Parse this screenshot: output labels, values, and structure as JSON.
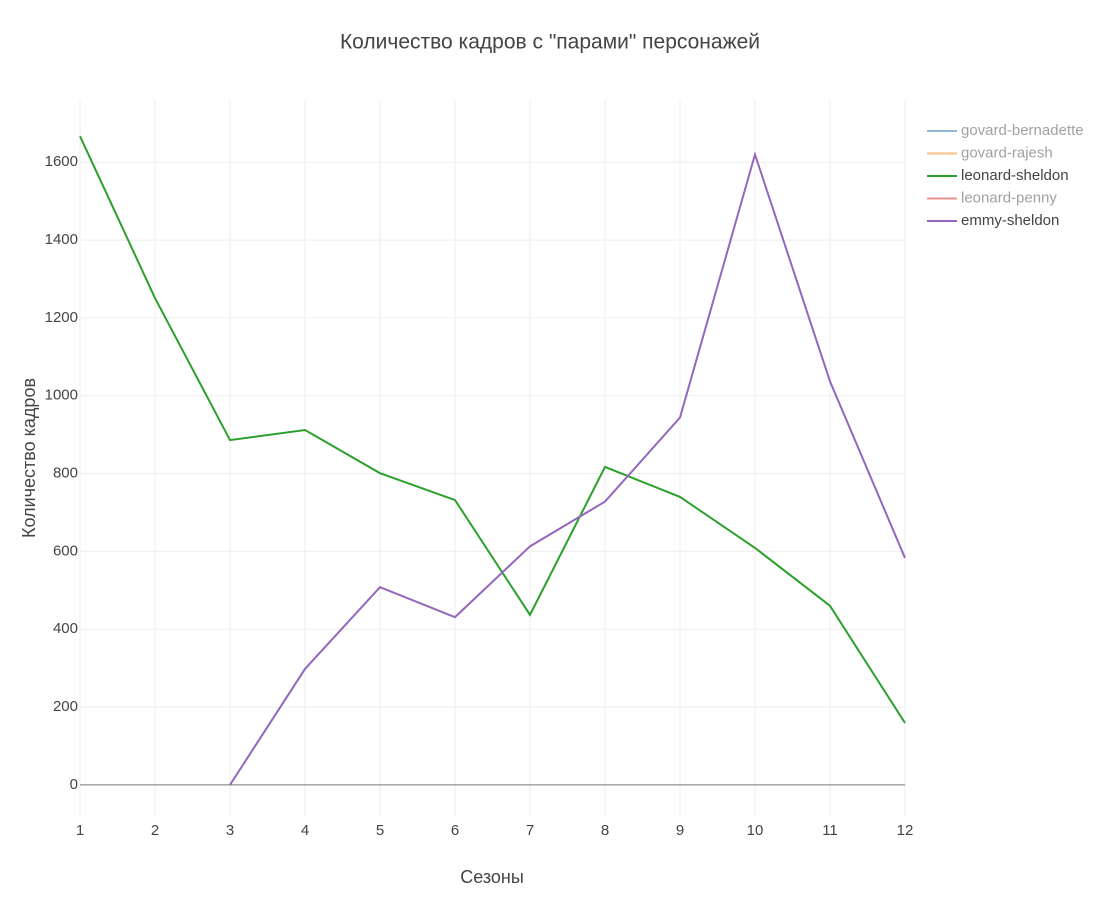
{
  "chart_data": {
    "type": "line",
    "title": "Количество кадров с \"парами\" персонажей",
    "x_label": "Сезоны",
    "y_label": "Количество кадров",
    "x": [
      1,
      2,
      3,
      4,
      5,
      6,
      7,
      8,
      9,
      10,
      11,
      12
    ],
    "series": [
      {
        "name": "govard-bernadette",
        "color": "#1f77b4",
        "visible": false
      },
      {
        "name": "govard-rajesh",
        "color": "#ff7f0e",
        "visible": false
      },
      {
        "name": "leonard-sheldon",
        "color": "#2ca02c",
        "visible": true,
        "values": [
          1667,
          1251,
          886,
          912,
          801,
          732,
          437,
          817,
          740,
          609,
          460,
          159
        ]
      },
      {
        "name": "leonard-penny",
        "color": "#d62728",
        "visible": false
      },
      {
        "name": "emmy-sheldon",
        "color": "#9467bd",
        "visible": true,
        "values": [
          null,
          null,
          0,
          298,
          508,
          431,
          613,
          728,
          944,
          1620,
          1037,
          583
        ]
      }
    ],
    "xlim": [
      1,
      12
    ],
    "xticks": [
      1,
      2,
      3,
      4,
      5,
      6,
      7,
      8,
      9,
      10,
      11,
      12
    ],
    "ylim": [
      -80,
      1760
    ],
    "yticks": [
      0,
      200,
      400,
      600,
      800,
      1000,
      1200,
      1400,
      1600
    ],
    "grid": true,
    "legend": "right"
  }
}
